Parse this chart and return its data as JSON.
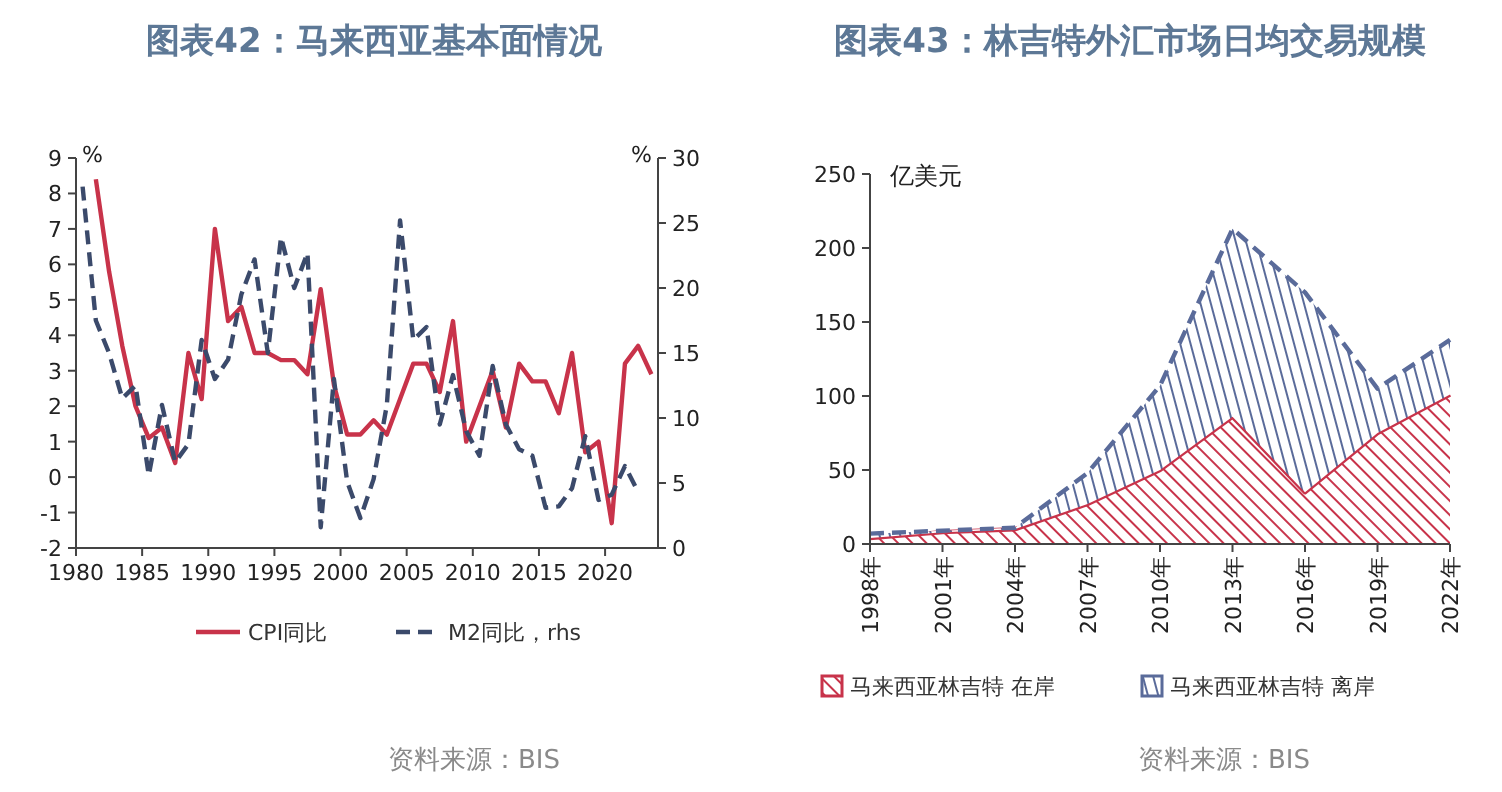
{
  "chart_data": [
    {
      "type": "line",
      "title": "图表42：马来西亚基本面情况",
      "ylabel": "%",
      "y2label": "%",
      "xlim": [
        1980,
        2024
      ],
      "xticks": [
        1980,
        1985,
        1990,
        1995,
        2000,
        2005,
        2010,
        2015,
        2020
      ],
      "ylim": [
        -2,
        9
      ],
      "yticks": [
        -2,
        -1,
        0,
        1,
        2,
        3,
        4,
        5,
        6,
        7,
        8,
        9
      ],
      "y2lim": [
        0,
        30
      ],
      "y2ticks": [
        0,
        5,
        10,
        15,
        20,
        25,
        30
      ],
      "legend": "bottom",
      "grid": false,
      "series": [
        {
          "name": "CPI同比",
          "color": "#c8334a",
          "line_style": "solid",
          "x": [
            1981.5,
            1982.5,
            1983.5,
            1984.5,
            1985.5,
            1986.5,
            1987.5,
            1988.5,
            1989.5,
            1990.5,
            1991.5,
            1992.5,
            1993.5,
            1994.5,
            1995.5,
            1996.5,
            1997.5,
            1998.5,
            1999.5,
            2000.5,
            2001.5,
            2002.5,
            2003.5,
            2004.5,
            2005.5,
            2006.5,
            2007.5,
            2008.5,
            2009.5,
            2010.5,
            2011.5,
            2012.5,
            2013.5,
            2014.5,
            2015.5,
            2016.5,
            2017.5,
            2018.5,
            2019.5,
            2020.5,
            2021.5,
            2022.5,
            2023.5
          ],
          "values": [
            8.4,
            5.8,
            3.7,
            2.0,
            1.1,
            1.4,
            0.4,
            3.5,
            2.2,
            7.0,
            4.4,
            4.8,
            3.5,
            3.5,
            3.3,
            3.3,
            2.9,
            5.3,
            2.6,
            1.2,
            1.2,
            1.6,
            1.2,
            2.2,
            3.2,
            3.2,
            2.4,
            4.4,
            1.0,
            2.0,
            3.0,
            1.4,
            3.2,
            2.7,
            2.7,
            1.8,
            3.5,
            0.7,
            1.0,
            -1.3,
            3.2,
            3.7,
            2.9
          ]
        },
        {
          "name": "M2同比，rhs",
          "color": "#3b4a6b",
          "line_style": "dashed",
          "axis": "y2",
          "x": [
            1980.5,
            1981.5,
            1982.5,
            1983.5,
            1984.5,
            1985.5,
            1986.5,
            1987.5,
            1988.5,
            1989.5,
            1990.5,
            1991.5,
            1992.5,
            1993.5,
            1994.5,
            1995.5,
            1996.5,
            1997.5,
            1998.5,
            1999.5,
            2000.5,
            2001.5,
            2002.5,
            2003.5,
            2004.5,
            2005.5,
            2006.5,
            2007.5,
            2008.5,
            2009.5,
            2010.5,
            2011.5,
            2012.5,
            2013.5,
            2014.5,
            2015.5,
            2016.5,
            2017.5,
            2018.5,
            2019.5,
            2020.5,
            2021.5,
            2022.5
          ],
          "values": [
            27.8,
            17.5,
            15.0,
            11.5,
            12.5,
            5.6,
            11.0,
            6.6,
            8.0,
            16.0,
            13.0,
            14.5,
            19.5,
            22.2,
            15.0,
            23.9,
            20.0,
            22.7,
            1.6,
            13.0,
            5.1,
            2.3,
            5.3,
            11.0,
            25.2,
            16.0,
            17.0,
            9.5,
            13.3,
            9.0,
            7.1,
            14.0,
            9.5,
            7.6,
            7.1,
            3.1,
            3.2,
            4.6,
            8.6,
            3.7,
            4.1,
            6.3,
            4.3
          ]
        }
      ],
      "annotations": [
        "资料来源：BIS"
      ]
    },
    {
      "type": "area",
      "stacked": true,
      "title": "图表43：林吉特外汇市场日均交易规模",
      "ylabel": "亿美元",
      "categories": [
        "1998年",
        "2001年",
        "2004年",
        "2007年",
        "2010年",
        "2013年",
        "2016年",
        "2019年",
        "2022年"
      ],
      "ylim": [
        0,
        250
      ],
      "yticks": [
        0,
        50,
        100,
        150,
        200,
        250
      ],
      "legend": "bottom",
      "grid": false,
      "series": [
        {
          "name": "马来西亚林吉特 在岸",
          "color": "#c8334a",
          "line_style": "solid",
          "values": [
            4,
            8,
            10,
            27,
            50,
            86,
            35,
            75,
            101
          ]
        },
        {
          "name": "马来西亚林吉特 离岸",
          "color": "#5a6b9a",
          "line_style": "dashed",
          "values": [
            3,
            1,
            1,
            21,
            57,
            127,
            135,
            30,
            37
          ]
        }
      ],
      "annotations": [
        "资料来源：BIS"
      ]
    }
  ]
}
